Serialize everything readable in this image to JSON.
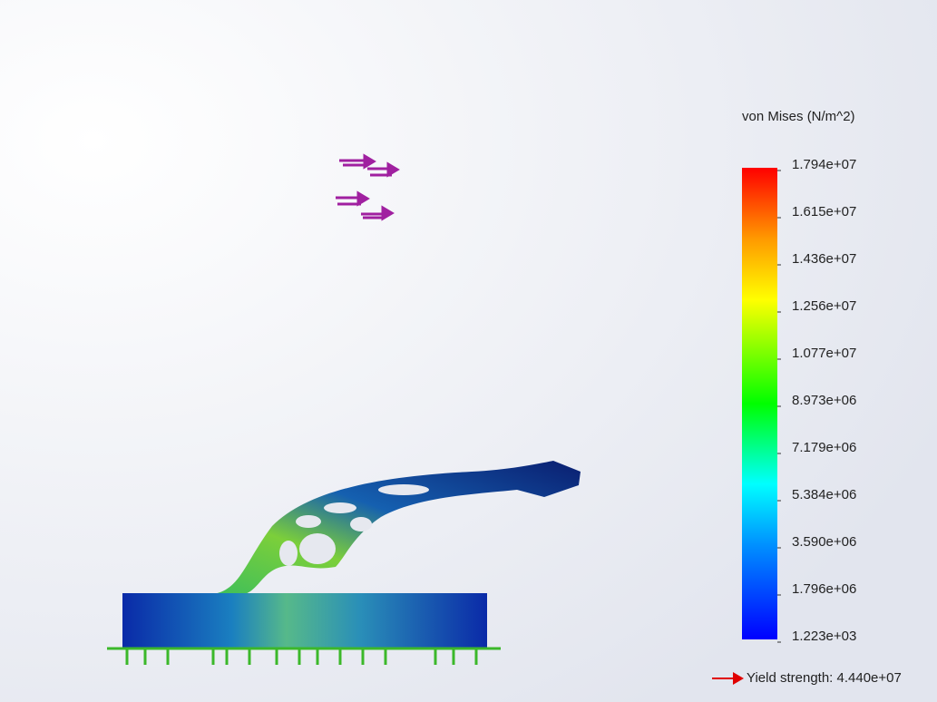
{
  "legend": {
    "title": "von Mises (N/m^2)",
    "labels": [
      "1.794e+07",
      "1.615e+07",
      "1.436e+07",
      "1.256e+07",
      "1.077e+07",
      "8.973e+06",
      "7.179e+06",
      "5.384e+06",
      "3.590e+06",
      "1.796e+06",
      "1.223e+03"
    ],
    "yield_strength": "Yield strength: 4.440e+07"
  }
}
